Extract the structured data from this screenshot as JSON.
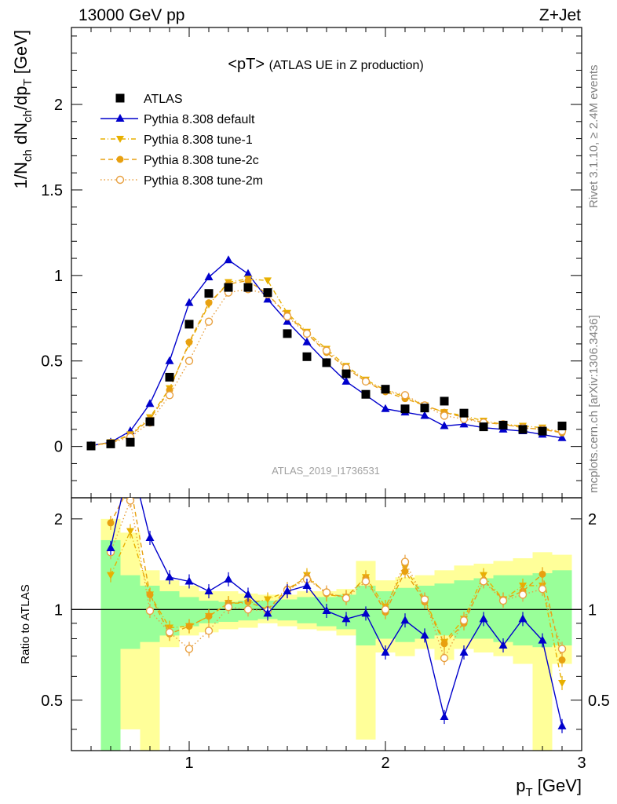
{
  "header": {
    "left": "13000 GeV pp",
    "right": "Z+Jet",
    "side_rivet": "Rivet 3.1.10, ≥ 2.4M events",
    "side_mcplots": "mcplots.cern.ch [arXiv:1306.3436]"
  },
  "chart_data": {
    "type": "line",
    "title_main": "<pT>",
    "title_sub": "(ATLAS UE in Z production)",
    "analysis_id": "ATLAS_2019_I1736531",
    "xlabel": "p",
    "xlabel_sub": "T",
    "xlabel_unit": "[GeV]",
    "ylabel": "1/N",
    "ylabel_parts": [
      "1/N",
      "ch",
      " dN",
      "ch",
      "/dp",
      "T",
      " [GeV]"
    ],
    "ratio_ylabel": "Ratio to ATLAS",
    "xlim": [
      0.4,
      3.0
    ],
    "ylim": [
      -0.3,
      2.45
    ],
    "ratio_ylim": [
      0.34,
      2.35
    ],
    "x_ticks": [
      "1",
      "2",
      "3"
    ],
    "y_ticks": [
      "0",
      "0.5",
      "1",
      "1.5",
      "2"
    ],
    "ratio_ticks": [
      "0.5",
      "1",
      "2"
    ],
    "x": [
      0.5,
      0.6,
      0.7,
      0.8,
      0.9,
      1.0,
      1.1,
      1.2,
      1.3,
      1.4,
      1.5,
      1.6,
      1.7,
      1.8,
      1.9,
      2.0,
      2.1,
      2.2,
      2.3,
      2.4,
      2.5,
      2.6,
      2.7,
      2.8,
      2.9
    ],
    "band_yellow": [
      [
        0.5,
        0.34
      ],
      [
        0.45,
        2.0
      ],
      [
        0.4,
        1.8
      ],
      [
        0.34,
        1.35
      ],
      [
        0.75,
        1.25
      ],
      [
        0.82,
        1.2
      ],
      [
        0.84,
        1.15
      ],
      [
        0.86,
        1.15
      ],
      [
        0.87,
        1.13
      ],
      [
        0.9,
        1.12
      ],
      [
        0.88,
        1.12
      ],
      [
        0.86,
        1.15
      ],
      [
        0.85,
        1.15
      ],
      [
        0.82,
        1.17
      ],
      [
        0.37,
        1.45
      ],
      [
        0.72,
        1.25
      ],
      [
        0.7,
        1.28
      ],
      [
        0.74,
        1.3
      ],
      [
        0.68,
        1.35
      ],
      [
        0.74,
        1.4
      ],
      [
        0.72,
        1.42
      ],
      [
        0.7,
        1.45
      ],
      [
        0.66,
        1.48
      ],
      [
        0.34,
        1.55
      ],
      [
        0.66,
        1.52
      ]
    ],
    "band_green": [
      [
        0.5,
        0.34
      ],
      [
        0.34,
        1.7
      ],
      [
        0.74,
        1.3
      ],
      [
        0.78,
        1.2
      ],
      [
        0.82,
        1.15
      ],
      [
        0.88,
        1.1
      ],
      [
        0.9,
        1.07
      ],
      [
        0.91,
        1.06
      ],
      [
        0.92,
        1.07
      ],
      [
        0.93,
        1.07
      ],
      [
        0.92,
        1.08
      ],
      [
        0.9,
        1.1
      ],
      [
        0.88,
        1.1
      ],
      [
        0.86,
        1.12
      ],
      [
        0.76,
        1.2
      ],
      [
        0.8,
        1.15
      ],
      [
        0.78,
        1.18
      ],
      [
        0.8,
        1.2
      ],
      [
        0.82,
        1.22
      ],
      [
        0.8,
        1.25
      ],
      [
        0.8,
        1.27
      ],
      [
        0.78,
        1.3
      ],
      [
        0.76,
        1.3
      ],
      [
        0.75,
        1.32
      ],
      [
        0.76,
        1.35
      ]
    ],
    "series": [
      {
        "name": "ATLAS",
        "color": "#000000",
        "marker": "square",
        "values": [
          0.003,
          0.015,
          0.025,
          0.145,
          0.405,
          0.715,
          0.895,
          0.93,
          0.93,
          0.9,
          0.66,
          0.525,
          0.49,
          0.425,
          0.305,
          0.335,
          0.22,
          0.225,
          0.265,
          0.195,
          0.115,
          0.125,
          0.1,
          0.09,
          0.12
        ],
        "ratio": [
          1,
          1,
          1,
          1,
          1,
          1,
          1,
          1,
          1,
          1,
          1,
          1,
          1,
          1,
          1,
          1,
          1,
          1,
          1,
          1,
          1,
          1,
          1,
          1,
          1
        ]
      },
      {
        "name": "Pythia 8.308 default",
        "color": "#0000cc",
        "marker": "triangle-up",
        "line": "solid",
        "values": [
          0.005,
          0.025,
          0.09,
          0.25,
          0.5,
          0.84,
          0.99,
          1.09,
          1.01,
          0.86,
          0.73,
          0.61,
          0.49,
          0.38,
          0.3,
          0.22,
          0.2,
          0.18,
          0.12,
          0.13,
          0.11,
          0.1,
          0.09,
          0.07,
          0.05
        ],
        "ratio": [
          null,
          1.6,
          3.2,
          1.73,
          1.28,
          1.24,
          1.15,
          1.26,
          1.12,
          0.97,
          1.15,
          1.2,
          0.99,
          0.93,
          0.97,
          0.72,
          0.92,
          0.82,
          0.44,
          0.72,
          0.93,
          0.76,
          0.93,
          0.79,
          0.41
        ]
      },
      {
        "name": "Pythia 8.308 tune-1",
        "color": "#e8b000",
        "marker": "triangle-down",
        "line": "dashdot",
        "values": [
          0.004,
          0.024,
          0.07,
          0.17,
          0.34,
          0.6,
          0.83,
          0.96,
          0.98,
          0.97,
          0.78,
          0.67,
          0.57,
          0.47,
          0.39,
          0.33,
          0.29,
          0.24,
          0.2,
          0.18,
          0.15,
          0.13,
          0.12,
          0.11,
          0.08
        ]
      },
      {
        "name": "Pythia 8.308 tune-2c",
        "color": "#e8a010",
        "marker": "circle",
        "line": "dashed",
        "values": [
          0.004,
          0.024,
          0.065,
          0.16,
          0.33,
          0.61,
          0.84,
          0.95,
          0.97,
          0.89,
          0.77,
          0.66,
          0.55,
          0.46,
          0.38,
          0.32,
          0.28,
          0.24,
          0.2,
          0.17,
          0.14,
          0.13,
          0.11,
          0.1,
          0.08
        ]
      },
      {
        "name": "Pythia 8.308 tune-2m",
        "color": "#e8a040",
        "marker": "circle-open",
        "line": "dotted",
        "values": [
          0.004,
          0.02,
          0.055,
          0.14,
          0.3,
          0.5,
          0.73,
          0.9,
          0.92,
          0.89,
          0.76,
          0.66,
          0.56,
          0.46,
          0.38,
          0.33,
          0.3,
          0.24,
          0.18,
          0.16,
          0.14,
          0.13,
          0.11,
          0.1,
          0.09
        ]
      }
    ],
    "ratio_series": {
      "Pythia 8.308 tune-1": [
        1.0,
        1.3,
        1.82,
        1.12,
        0.87,
        0.88,
        0.95,
        1.05,
        1.05,
        1.08,
        1.15,
        1.3,
        1.12,
        1.1,
        1.28,
        1.02,
        1.38,
        1.08,
        0.78,
        0.93,
        1.3,
        1.08,
        1.2,
        1.2,
        0.57
      ],
      "Pythia 8.308 tune-2c": [
        1.0,
        1.94,
        2.6,
        1.12,
        0.83,
        0.88,
        0.95,
        1.05,
        1.06,
        1.0,
        1.17,
        1.28,
        1.13,
        1.1,
        1.27,
        0.98,
        1.34,
        1.06,
        0.77,
        0.9,
        1.25,
        1.08,
        1.15,
        1.31,
        0.68
      ],
      "Pythia 8.308 tune-2m": [
        1.0,
        1.55,
        2.3,
        0.99,
        0.84,
        0.74,
        0.85,
        1.02,
        1.0,
        0.99,
        1.16,
        1.26,
        1.14,
        1.09,
        1.24,
        1.0,
        1.44,
        1.08,
        0.69,
        0.92,
        1.24,
        1.07,
        1.12,
        1.17,
        0.74
      ]
    }
  }
}
